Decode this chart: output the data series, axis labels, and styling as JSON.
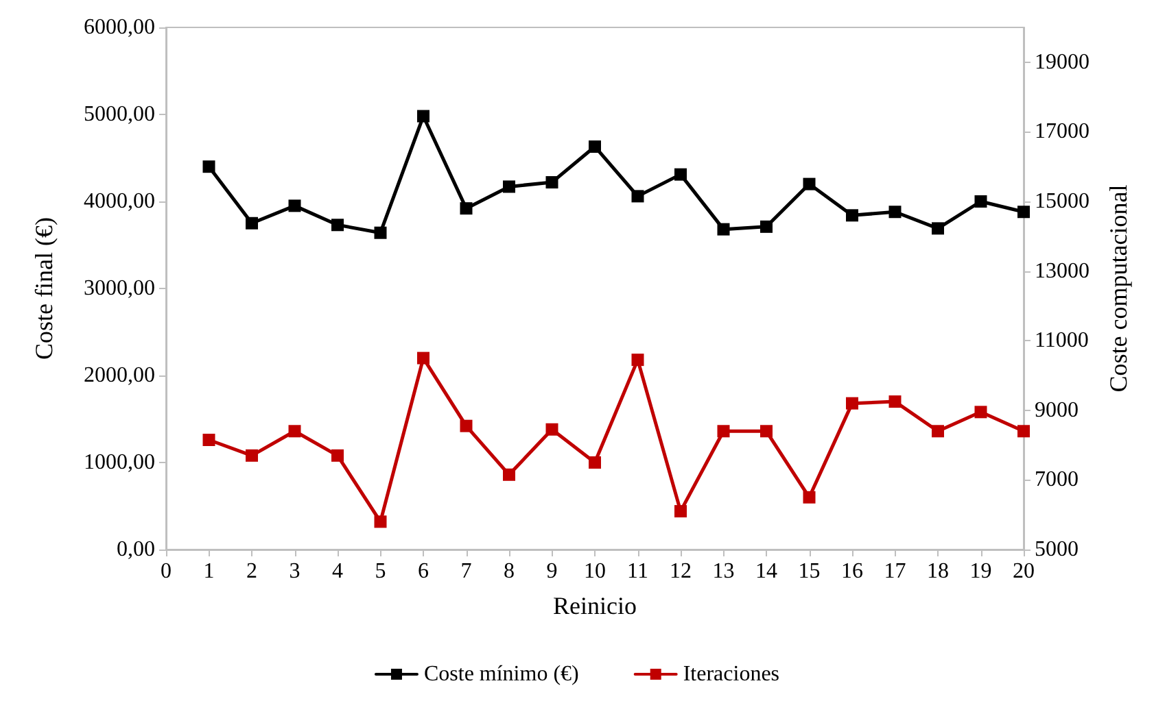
{
  "chart_data": {
    "type": "line",
    "xlabel": "Reinicio",
    "ylabel": "Coste final (€)",
    "y2label": "Coste computacional",
    "x": [
      1,
      2,
      3,
      4,
      5,
      6,
      7,
      8,
      9,
      10,
      11,
      12,
      13,
      14,
      15,
      16,
      17,
      18,
      19,
      20
    ],
    "series": [
      {
        "name": "Coste mínimo (€)",
        "color": "#000000",
        "values": [
          4400,
          3750,
          3950,
          3730,
          3640,
          4980,
          3920,
          4170,
          4220,
          4630,
          4060,
          4310,
          3680,
          3710,
          4200,
          3840,
          3880,
          3690,
          4000,
          3880
        ]
      },
      {
        "name": "Iteraciones",
        "color": "#c00000",
        "axis": "y2",
        "values": [
          8150,
          7700,
          8400,
          7700,
          5800,
          10500,
          8550,
          7150,
          8450,
          7500,
          10450,
          6100,
          8400,
          8400,
          6500,
          9200,
          9250,
          8400,
          8950,
          8400
        ]
      }
    ],
    "xlim": [
      0,
      20
    ],
    "xticks": [
      0,
      1,
      2,
      3,
      4,
      5,
      6,
      7,
      8,
      9,
      10,
      11,
      12,
      13,
      14,
      15,
      16,
      17,
      18,
      19,
      20
    ],
    "ylim": [
      0,
      6000
    ],
    "yticks": [
      {
        "value": 0,
        "label": "0,00"
      },
      {
        "value": 1000,
        "label": "1000,00"
      },
      {
        "value": 2000,
        "label": "2000,00"
      },
      {
        "value": 3000,
        "label": "3000,00"
      },
      {
        "value": 4000,
        "label": "4000,00"
      },
      {
        "value": 5000,
        "label": "5000,00"
      },
      {
        "value": 6000,
        "label": "6000,00"
      }
    ],
    "y2lim": [
      5000,
      20000
    ],
    "y2ticks": [
      5000,
      7000,
      9000,
      11000,
      13000,
      15000,
      17000,
      19000
    ],
    "grid": false,
    "legend": "bottom",
    "marker": "square",
    "line_style": "solid"
  }
}
